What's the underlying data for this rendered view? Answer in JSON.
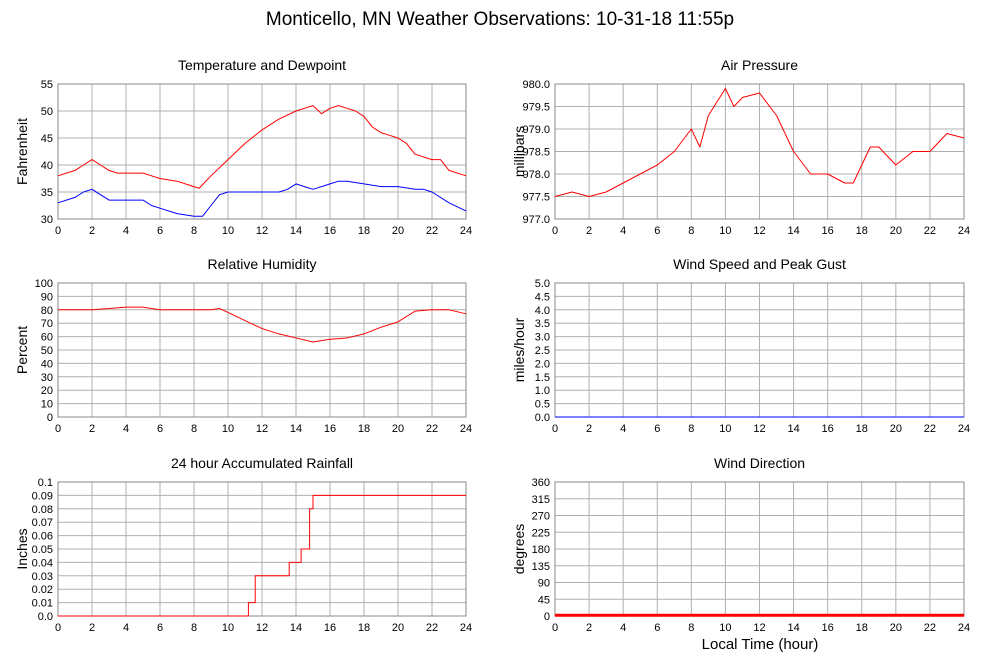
{
  "page": {
    "title": "Monticello, MN Weather Observations: 10-31-18 11:55p",
    "xaxis_title": "Local Time (hour)"
  },
  "colors": {
    "primary_series": "#ff0000",
    "secondary_series": "#0000ff",
    "grid": "#b0b0b0",
    "frame": "#888888"
  },
  "chart_data": [
    {
      "id": "temperature",
      "type": "line",
      "title": "Temperature and Dewpoint",
      "ylabel": "Fahrenheit",
      "xlabel": "",
      "xlim": [
        0,
        24
      ],
      "ylim": [
        30,
        55
      ],
      "x_ticks": [
        0,
        2,
        4,
        6,
        8,
        10,
        12,
        14,
        16,
        18,
        20,
        22,
        24
      ],
      "y_ticks": [
        "30",
        "35",
        "40",
        "45",
        "50",
        "55"
      ],
      "grid": true,
      "series": [
        {
          "color": "#ff0000",
          "x": [
            0,
            1,
            1.5,
            2,
            2.5,
            3,
            3.5,
            4,
            5,
            5.5,
            6,
            7,
            8,
            8.3,
            9,
            10,
            11,
            12,
            13,
            14,
            14.5,
            15,
            15.5,
            16,
            16.5,
            17,
            17.5,
            18,
            18.5,
            19,
            19.5,
            20,
            20.5,
            21,
            22,
            22.5,
            23,
            24
          ],
          "y": [
            38,
            39,
            40,
            41,
            40,
            39,
            38.5,
            38.5,
            38.5,
            38,
            37.5,
            37,
            36,
            35.7,
            38,
            41,
            44,
            46.5,
            48.5,
            50,
            50.5,
            51,
            49.5,
            50.5,
            51,
            50.5,
            50,
            49,
            47,
            46,
            45.5,
            45,
            44,
            42,
            41,
            41,
            39,
            38
          ]
        },
        {
          "color": "#0000ff",
          "x": [
            0,
            1,
            1.5,
            2,
            2.5,
            3,
            4,
            5,
            5.5,
            6,
            7,
            8,
            8.5,
            9,
            9.5,
            10,
            11,
            12,
            13,
            13.5,
            14,
            14.5,
            15,
            16,
            16.5,
            17,
            18,
            19,
            20,
            21,
            21.5,
            22,
            23,
            24
          ],
          "y": [
            33,
            34,
            35,
            35.5,
            34.5,
            33.5,
            33.5,
            33.5,
            32.5,
            32,
            31,
            30.5,
            30.5,
            32.5,
            34.5,
            35,
            35,
            35,
            35,
            35.5,
            36.5,
            36,
            35.5,
            36.5,
            37,
            37,
            36.5,
            36,
            36,
            35.5,
            35.5,
            35,
            33,
            31.5
          ]
        }
      ]
    },
    {
      "id": "pressure",
      "type": "line",
      "title": "Air Pressure",
      "ylabel": "millibars",
      "xlabel": "",
      "xlim": [
        0,
        24
      ],
      "ylim": [
        977.0,
        980.0
      ],
      "x_ticks": [
        0,
        2,
        4,
        6,
        8,
        10,
        12,
        14,
        16,
        18,
        20,
        22,
        24
      ],
      "y_ticks": [
        "977.0",
        "977.5",
        "978.0",
        "978.5",
        "979.0",
        "979.5",
        "980.0"
      ],
      "grid": true,
      "series": [
        {
          "color": "#ff0000",
          "x": [
            0,
            1,
            2,
            3,
            4,
            5,
            6,
            7,
            8,
            8.5,
            9,
            9.5,
            10,
            10.5,
            11,
            12,
            13,
            14,
            15,
            16,
            17,
            17.5,
            18,
            18.5,
            19,
            20,
            21,
            22,
            23,
            24
          ],
          "y": [
            977.5,
            977.6,
            977.5,
            977.6,
            977.8,
            978.0,
            978.2,
            978.5,
            979.0,
            978.6,
            979.3,
            979.6,
            979.9,
            979.5,
            979.7,
            979.8,
            979.3,
            978.5,
            978.0,
            978.0,
            977.8,
            977.8,
            978.2,
            978.6,
            978.6,
            978.2,
            978.5,
            978.5,
            978.9,
            978.8
          ]
        }
      ]
    },
    {
      "id": "humidity",
      "type": "line",
      "title": "Relative Humidity",
      "ylabel": "Percent",
      "xlabel": "",
      "xlim": [
        0,
        24
      ],
      "ylim": [
        0,
        100
      ],
      "x_ticks": [
        0,
        2,
        4,
        6,
        8,
        10,
        12,
        14,
        16,
        18,
        20,
        22,
        24
      ],
      "y_ticks": [
        "0",
        "10",
        "20",
        "30",
        "40",
        "50",
        "60",
        "70",
        "80",
        "90",
        "100"
      ],
      "grid": true,
      "series": [
        {
          "color": "#ff0000",
          "x": [
            0,
            2,
            3,
            4,
            5,
            5.5,
            6,
            8,
            9,
            9.5,
            10,
            11,
            12,
            13,
            14,
            15,
            16,
            17,
            18,
            19,
            20,
            20.5,
            21,
            22,
            23,
            24
          ],
          "y": [
            80,
            80,
            81,
            82,
            82,
            81,
            80,
            80,
            80,
            81,
            78,
            72,
            66,
            62,
            59,
            56,
            58,
            59,
            62,
            67,
            71,
            75,
            79,
            80,
            80,
            77
          ]
        }
      ]
    },
    {
      "id": "wind_speed",
      "type": "line",
      "title": "Wind Speed and Peak Gust",
      "ylabel": "miles/hour",
      "xlabel": "",
      "xlim": [
        0,
        24
      ],
      "ylim": [
        0,
        5.0
      ],
      "x_ticks": [
        0,
        2,
        4,
        6,
        8,
        10,
        12,
        14,
        16,
        18,
        20,
        22,
        24
      ],
      "y_ticks": [
        "0.0",
        "0.5",
        "1.0",
        "1.5",
        "2.0",
        "2.5",
        "3.0",
        "3.5",
        "4.0",
        "4.5",
        "5.0"
      ],
      "grid": true,
      "series": [
        {
          "color": "#ff0000",
          "x": [
            0,
            24
          ],
          "y": [
            0,
            0
          ]
        },
        {
          "color": "#0000ff",
          "x": [
            0,
            24
          ],
          "y": [
            0,
            0
          ]
        }
      ]
    },
    {
      "id": "rainfall",
      "type": "line",
      "title": "24 hour Accumulated Rainfall",
      "ylabel": "Inches",
      "xlabel": "",
      "xlim": [
        0,
        24
      ],
      "ylim": [
        0,
        0.1
      ],
      "x_ticks": [
        0,
        2,
        4,
        6,
        8,
        10,
        12,
        14,
        16,
        18,
        20,
        22,
        24
      ],
      "y_ticks": [
        "0.0",
        "0.01",
        "0.02",
        "0.03",
        "0.04",
        "0.05",
        "0.06",
        "0.07",
        "0.08",
        "0.09",
        "0.1"
      ],
      "grid": true,
      "step": true,
      "series": [
        {
          "color": "#ff0000",
          "x": [
            0,
            11.2,
            11.6,
            12.8,
            13.6,
            14.3,
            14.8,
            15.0,
            24
          ],
          "y": [
            0,
            0.01,
            0.03,
            0.03,
            0.04,
            0.05,
            0.08,
            0.09,
            0.09
          ]
        }
      ]
    },
    {
      "id": "wind_direction",
      "type": "line",
      "title": "Wind Direction",
      "ylabel": "degrees",
      "xlabel": "Local Time (hour)",
      "xlim": [
        0,
        24
      ],
      "ylim": [
        0,
        360
      ],
      "x_ticks": [
        0,
        2,
        4,
        6,
        8,
        10,
        12,
        14,
        16,
        18,
        20,
        22,
        24
      ],
      "y_ticks": [
        "0",
        "45",
        "90",
        "135",
        "180",
        "225",
        "270",
        "315",
        "360"
      ],
      "grid": true,
      "series": [
        {
          "color": "#ff0000",
          "x": [
            0,
            24
          ],
          "y": [
            2,
            2
          ]
        }
      ]
    }
  ]
}
